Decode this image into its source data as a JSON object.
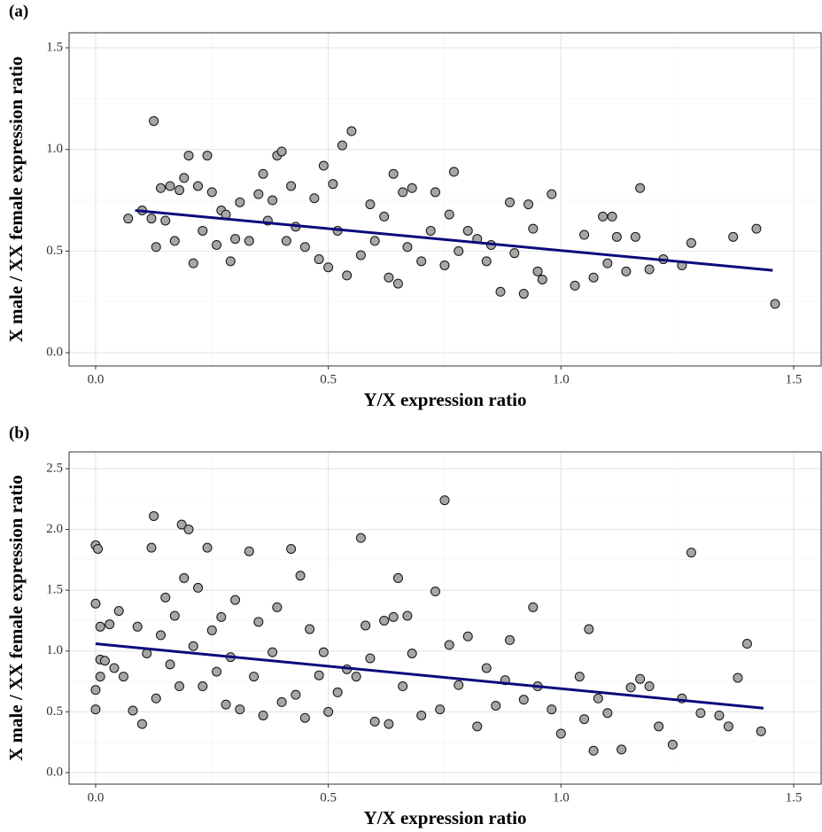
{
  "chart_data": [
    {
      "type": "scatter",
      "title": "(a)",
      "xlabel": "Y/X expression ratio",
      "ylabel": "X male / XX female expression ratio",
      "xlim": [
        -0.057,
        1.559
      ],
      "ylim": [
        -0.065,
        1.574
      ],
      "xticks": [
        {
          "value": 0,
          "label": "0.0"
        },
        0.5,
        {
          "value": 1,
          "label": "1.0"
        },
        1.5
      ],
      "yticks": [
        {
          "value": 0,
          "label": "0.0"
        },
        0.5,
        {
          "value": 1,
          "label": "1.0"
        },
        1.5
      ],
      "grid": true,
      "series": [
        {
          "color": "#a6a6a6",
          "x": [
            0.07,
            0.1,
            0.12,
            0.125,
            0.13,
            0.14,
            0.15,
            0.16,
            0.17,
            0.18,
            0.19,
            0.2,
            0.21,
            0.22,
            0.23,
            0.24,
            0.25,
            0.26,
            0.27,
            0.28,
            0.29,
            0.3,
            0.31,
            0.33,
            0.35,
            0.36,
            0.37,
            0.38,
            0.39,
            0.4,
            0.41,
            0.42,
            0.43,
            0.45,
            0.47,
            0.48,
            0.49,
            0.5,
            0.51,
            0.52,
            0.53,
            0.54,
            0.55,
            0.57,
            0.59,
            0.6,
            0.62,
            0.63,
            0.64,
            0.65,
            0.66,
            0.67,
            0.68,
            0.7,
            0.72,
            0.73,
            0.75,
            0.76,
            0.77,
            0.78,
            0.8,
            0.82,
            0.84,
            0.85,
            0.87,
            0.89,
            0.9,
            0.92,
            0.93,
            0.94,
            0.95,
            0.96,
            0.98,
            1.03,
            1.05,
            1.07,
            1.09,
            1.1,
            1.11,
            1.12,
            1.14,
            1.16,
            1.17,
            1.19,
            1.22,
            1.26,
            1.28,
            1.37,
            1.42,
            1.46
          ],
          "values": [
            0.66,
            0.7,
            0.66,
            1.14,
            0.52,
            0.81,
            0.65,
            0.82,
            0.55,
            0.8,
            0.86,
            0.97,
            0.44,
            0.82,
            0.6,
            0.97,
            0.79,
            0.53,
            0.7,
            0.68,
            0.45,
            0.56,
            0.74,
            0.55,
            0.78,
            0.88,
            0.65,
            0.75,
            0.97,
            0.99,
            0.55,
            0.82,
            0.62,
            0.52,
            0.76,
            0.46,
            0.92,
            0.42,
            0.83,
            0.6,
            1.02,
            0.38,
            1.09,
            0.48,
            0.73,
            0.55,
            0.67,
            0.37,
            0.88,
            0.34,
            0.79,
            0.52,
            0.81,
            0.45,
            0.6,
            0.79,
            0.43,
            0.68,
            0.89,
            0.5,
            0.6,
            0.56,
            0.45,
            0.53,
            0.3,
            0.74,
            0.49,
            0.29,
            0.73,
            0.61,
            0.4,
            0.36,
            0.78,
            0.33,
            0.58,
            0.37,
            0.67,
            0.44,
            0.67,
            0.57,
            0.4,
            0.57,
            0.81,
            0.41,
            0.46,
            0.43,
            0.54,
            0.57,
            0.61,
            0.24
          ]
        },
        {
          "type": "line",
          "color": "#0b0b7d",
          "x": [
            0.085,
            1.455
          ],
          "values": [
            0.7,
            0.405
          ]
        }
      ]
    },
    {
      "type": "scatter",
      "title": "(b)",
      "xlabel": "Y/X expression ratio",
      "ylabel": "X male / XX female expression ratio",
      "xlim": [
        -0.057,
        1.559
      ],
      "ylim": [
        -0.095,
        2.638
      ],
      "xticks": [
        {
          "value": 0,
          "label": "0.0"
        },
        0.5,
        {
          "value": 1,
          "label": "1.0"
        },
        1.5
      ],
      "yticks": [
        {
          "value": 0,
          "label": "0.0"
        },
        0.5,
        {
          "value": 1,
          "label": "1.0"
        },
        1.5,
        {
          "value": 2,
          "label": "2.0"
        },
        2.5
      ],
      "grid": true,
      "series": [
        {
          "color": "#a6a6a6",
          "x": [
            0.0,
            0.0,
            0.005,
            0.01,
            0.01,
            0.0,
            0.0,
            0.01,
            0.02,
            0.03,
            0.04,
            0.05,
            0.06,
            0.08,
            0.09,
            0.1,
            0.11,
            0.12,
            0.125,
            0.13,
            0.14,
            0.15,
            0.16,
            0.17,
            0.18,
            0.185,
            0.19,
            0.2,
            0.21,
            0.22,
            0.23,
            0.24,
            0.25,
            0.26,
            0.27,
            0.28,
            0.29,
            0.3,
            0.31,
            0.33,
            0.34,
            0.35,
            0.36,
            0.38,
            0.39,
            0.4,
            0.42,
            0.43,
            0.44,
            0.45,
            0.46,
            0.48,
            0.49,
            0.5,
            0.52,
            0.54,
            0.56,
            0.57,
            0.58,
            0.59,
            0.6,
            0.62,
            0.63,
            0.64,
            0.65,
            0.66,
            0.67,
            0.68,
            0.7,
            0.73,
            0.74,
            0.75,
            0.76,
            0.78,
            0.8,
            0.82,
            0.84,
            0.86,
            0.88,
            0.89,
            0.92,
            0.94,
            0.95,
            0.98,
            1.0,
            1.04,
            1.05,
            1.06,
            1.07,
            1.08,
            1.1,
            1.13,
            1.15,
            1.17,
            1.19,
            1.21,
            1.24,
            1.26,
            1.28,
            1.3,
            1.34,
            1.36,
            1.38,
            1.4,
            1.43
          ],
          "values": [
            1.87,
            1.39,
            1.84,
            1.2,
            0.93,
            0.68,
            0.52,
            0.79,
            0.92,
            1.22,
            0.86,
            1.33,
            0.79,
            0.51,
            1.2,
            0.4,
            0.98,
            1.85,
            2.11,
            0.61,
            1.13,
            1.44,
            0.89,
            1.29,
            0.71,
            2.04,
            1.6,
            2.0,
            1.04,
            1.52,
            0.71,
            1.85,
            1.17,
            0.83,
            1.28,
            0.56,
            0.95,
            1.42,
            0.52,
            1.82,
            0.79,
            1.24,
            0.47,
            0.99,
            1.36,
            0.58,
            1.84,
            0.64,
            1.62,
            0.45,
            1.18,
            0.8,
            0.99,
            0.5,
            0.66,
            0.85,
            0.79,
            1.93,
            1.21,
            0.94,
            0.42,
            1.25,
            0.4,
            1.28,
            1.6,
            0.71,
            1.29,
            0.98,
            0.47,
            1.49,
            0.52,
            2.24,
            1.05,
            0.72,
            1.12,
            0.38,
            0.86,
            0.55,
            0.76,
            1.09,
            0.6,
            1.36,
            0.71,
            0.52,
            0.32,
            0.79,
            0.44,
            1.18,
            0.18,
            0.61,
            0.49,
            0.19,
            0.7,
            0.77,
            0.71,
            0.38,
            0.23,
            0.61,
            1.81,
            0.49,
            0.47,
            0.38,
            0.78,
            1.06,
            0.34
          ]
        },
        {
          "type": "line",
          "color": "#0b0b7d",
          "x": [
            0.0,
            1.435
          ],
          "values": [
            1.06,
            0.53
          ]
        }
      ]
    }
  ]
}
